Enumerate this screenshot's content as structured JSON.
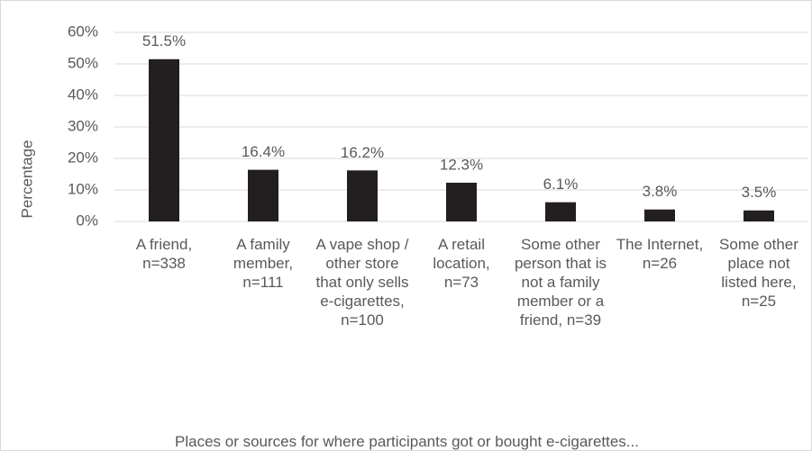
{
  "chart_data": {
    "type": "bar",
    "y_label": "Percentage",
    "x_label": "Places or sources for where participants got or bought e-cigarettes...",
    "categories": [
      "A friend, n=338",
      "A family member, n=111",
      "A vape shop / other store that only sells e-cigarettes, n=100",
      "A retail location, n=73",
      "Some other person that is not a family member or a friend, n=39",
      "The Internet, n=26",
      "Some other place not listed here, n=25"
    ],
    "values": [
      51.5,
      16.4,
      16.2,
      12.3,
      6.1,
      3.8,
      3.5
    ],
    "value_labels": [
      "51.5%",
      "16.4%",
      "16.2%",
      "12.3%",
      "6.1%",
      "3.8%",
      "3.5%"
    ],
    "color": "#231f20",
    "ylim": [
      0,
      60
    ],
    "yticks": [
      {
        "value": 0,
        "label": "0%"
      },
      {
        "value": 10,
        "label": "10%"
      },
      {
        "value": 20,
        "label": "20%"
      },
      {
        "value": 30,
        "label": "30%"
      },
      {
        "value": 40,
        "label": "40%"
      },
      {
        "value": 50,
        "label": "50%"
      },
      {
        "value": 60,
        "label": "60%"
      }
    ],
    "grid": true
  }
}
